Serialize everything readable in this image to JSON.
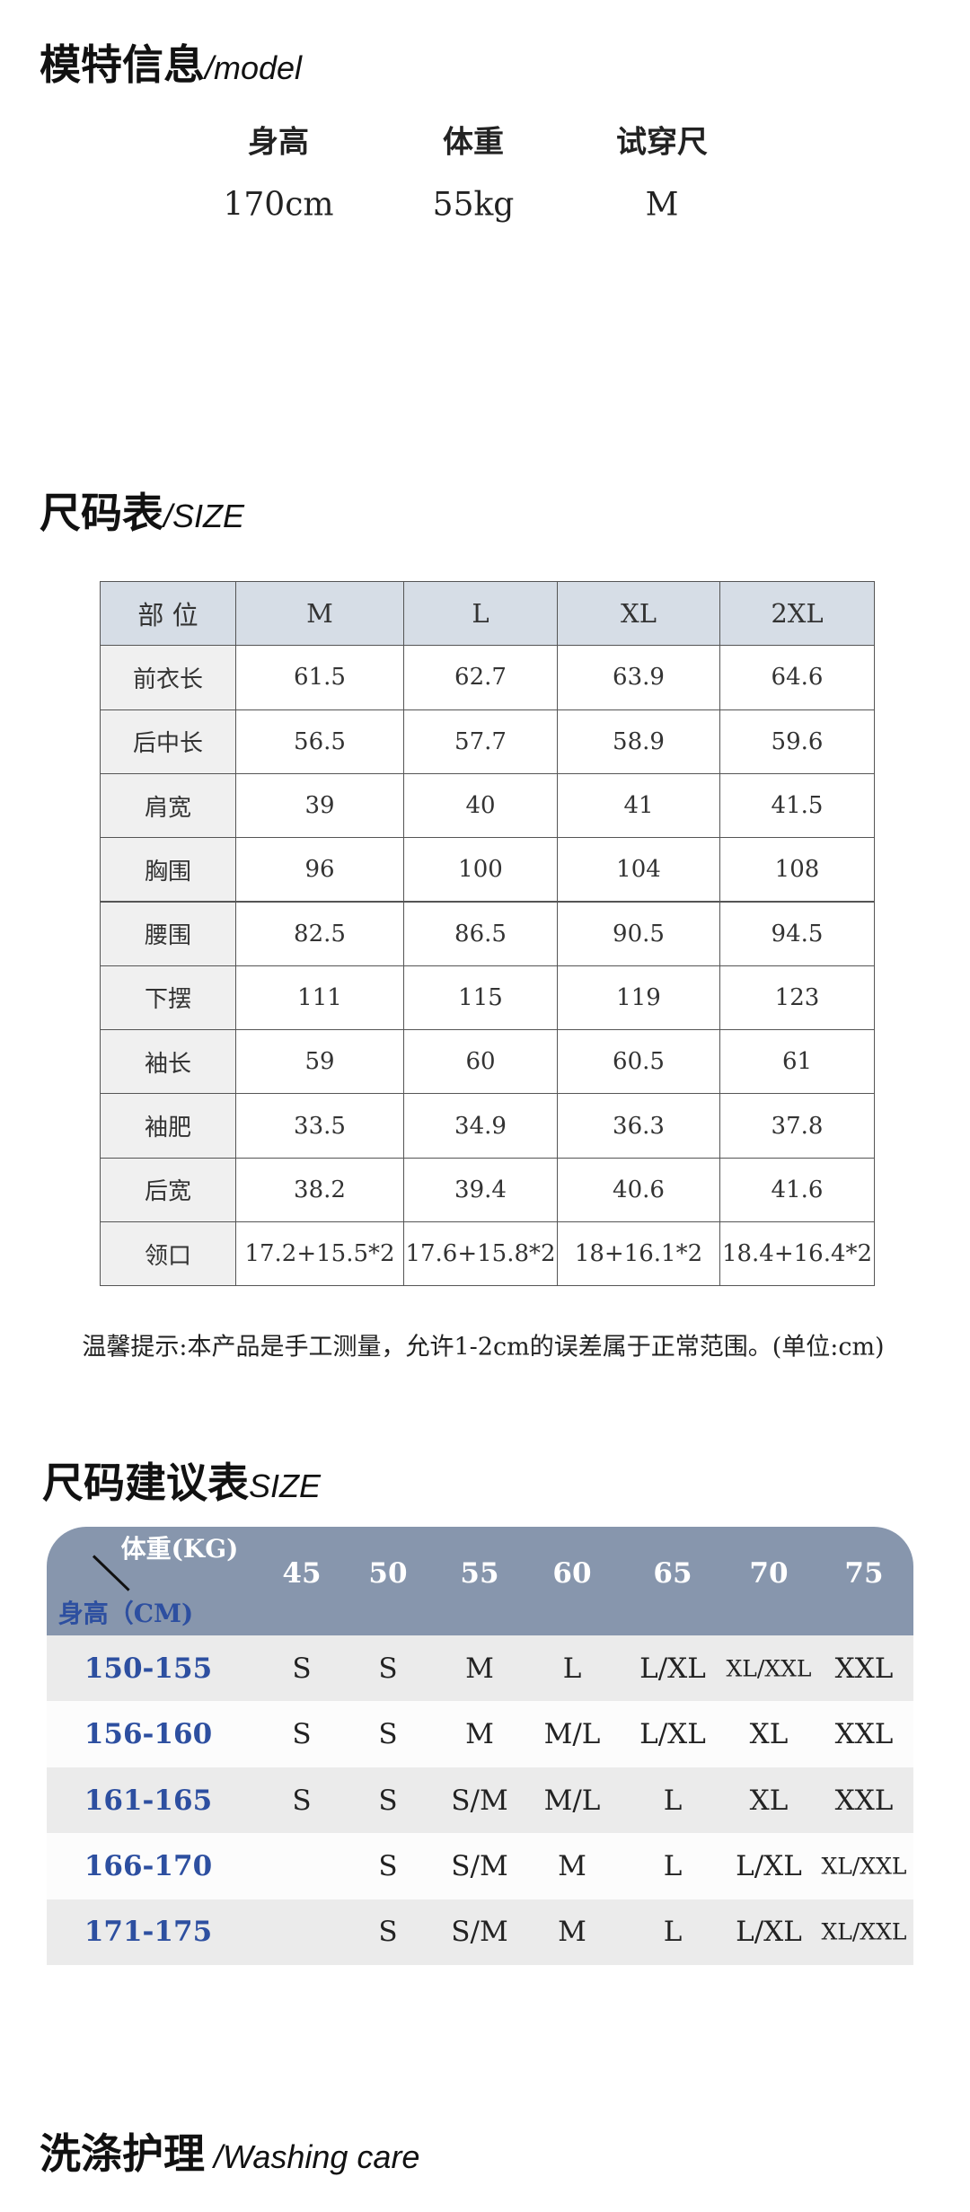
{
  "model": {
    "title": "模特信息",
    "subtitle": "/model",
    "headers": [
      "身高",
      "体重",
      "试穿尺"
    ],
    "values": [
      "170cm",
      "55kg",
      "M"
    ]
  },
  "size_table": {
    "title": "尺码表",
    "subtitle": "/SIZE",
    "header": [
      "部 位",
      "M",
      "L",
      "XL",
      "2XL"
    ],
    "rows": [
      [
        "前衣长",
        "61.5",
        "62.7",
        "63.9",
        "64.6"
      ],
      [
        "后中长",
        "56.5",
        "57.7",
        "58.9",
        "59.6"
      ],
      [
        "肩宽",
        "39",
        "40",
        "41",
        "41.5"
      ],
      [
        "胸围",
        "96",
        "100",
        "104",
        "108"
      ],
      [
        "腰围",
        "82.5",
        "86.5",
        "90.5",
        "94.5"
      ],
      [
        "下摆",
        "111",
        "115",
        "119",
        "123"
      ],
      [
        "袖长",
        "59",
        "60",
        "60.5",
        "61"
      ],
      [
        "袖肥",
        "33.5",
        "34.9",
        "36.3",
        "37.8"
      ],
      [
        "后宽",
        "38.2",
        "39.4",
        "40.6",
        "41.6"
      ],
      [
        "领口",
        "17.2+15.5*2",
        "17.6+15.8*2",
        "18+16.1*2",
        "18.4+16.4*2"
      ]
    ],
    "note": "温馨提示:本产品是手工测量，允许1-2cm的误差属于正常范围。(单位:cm)"
  },
  "recommend": {
    "title": "尺码建议表",
    "subtitle": "SIZE",
    "weight_label": "体重(KG)",
    "height_label": "身高（CM)",
    "weights": [
      45,
      50,
      55,
      60,
      65,
      70,
      75
    ],
    "rows": [
      {
        "height": "150-155",
        "sizes": [
          "S",
          "S",
          "M",
          "L",
          "L/XL",
          "XL/XXL",
          "XXL"
        ]
      },
      {
        "height": "156-160",
        "sizes": [
          "S",
          "S",
          "M",
          "M/L",
          "L/XL",
          "XL",
          "XXL"
        ]
      },
      {
        "height": "161-165",
        "sizes": [
          "S",
          "S",
          "S/M",
          "M/L",
          "L",
          "XL",
          "XXL"
        ]
      },
      {
        "height": "166-170",
        "sizes": [
          null,
          "S",
          "S/M",
          "M",
          "L",
          "L/XL",
          "XL/XXL"
        ]
      },
      {
        "height": "171-175",
        "sizes": [
          null,
          "S",
          "S/M",
          "M",
          "L",
          "L/XL",
          "XL/XXL"
        ]
      }
    ]
  },
  "washing": {
    "title": "洗涤护理",
    "subtitle": " /Washing care"
  }
}
